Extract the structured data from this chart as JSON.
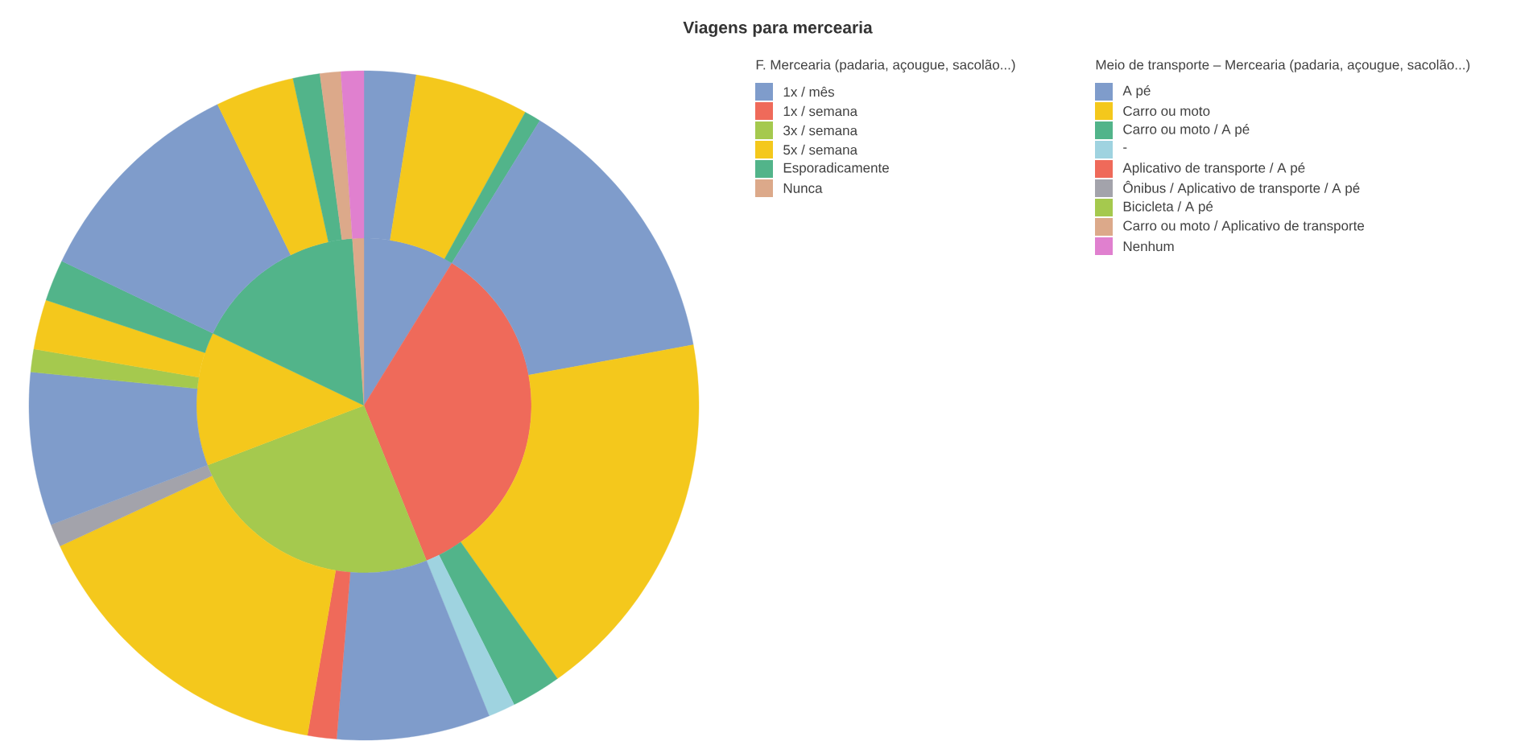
{
  "chart_data": [
    {
      "type": "pie",
      "title": "Viagens para mercearia",
      "legend_title": "F. Mercearia (padaria, açougue, sacolão...)",
      "legend": "right",
      "categories": [
        "1x / mês",
        "1x / semana",
        "3x / semana",
        "5x / semana",
        "Esporadicamente",
        "Nunca"
      ],
      "values": [
        8.8,
        35.1,
        25.3,
        12.9,
        16.8,
        1.1
      ],
      "colors": [
        "#7f9ccb",
        "#ef6a5a",
        "#a5c94e",
        "#f4c81c",
        "#52b48a",
        "#dca98a"
      ]
    },
    {
      "type": "donut",
      "legend_title": "Meio de transporte – Mercearia (padaria, açougue, sacolão...)",
      "legend": "right",
      "categories": [
        "A pé",
        "Carro ou moto",
        "Carro ou moto / A pé",
        null,
        null,
        null,
        "-",
        null,
        "Aplicativo de transporte / A pé",
        null,
        "Ônibus / Aplicativo de transporte / A pé",
        null,
        "Bicicleta / A pé",
        null,
        null,
        null,
        null,
        null,
        "Carro ou moto / Aplicativo de transporte",
        "Nenhum"
      ],
      "values": [
        2.5,
        5.5,
        0.8,
        13.3,
        18.1,
        2.4,
        1.3,
        7.4,
        1.4,
        15.4,
        1.1,
        7.4,
        1.1,
        2.4,
        2.0,
        10.7,
        3.8,
        1.3,
        1.0,
        1.1
      ],
      "colors": [
        "#7f9ccb",
        "#f4c81c",
        "#52b48a",
        "#7f9ccb",
        "#f4c81c",
        "#52b48a",
        "#9fd3e0",
        "#7f9ccb",
        "#ef6a5a",
        "#f4c81c",
        "#a3a3ab",
        "#7f9ccb",
        "#a5c94e",
        "#f4c81c",
        "#52b48a",
        "#7f9ccb",
        "#f4c81c",
        "#52b48a",
        "#dca98a",
        "#e080cf"
      ]
    }
  ]
}
